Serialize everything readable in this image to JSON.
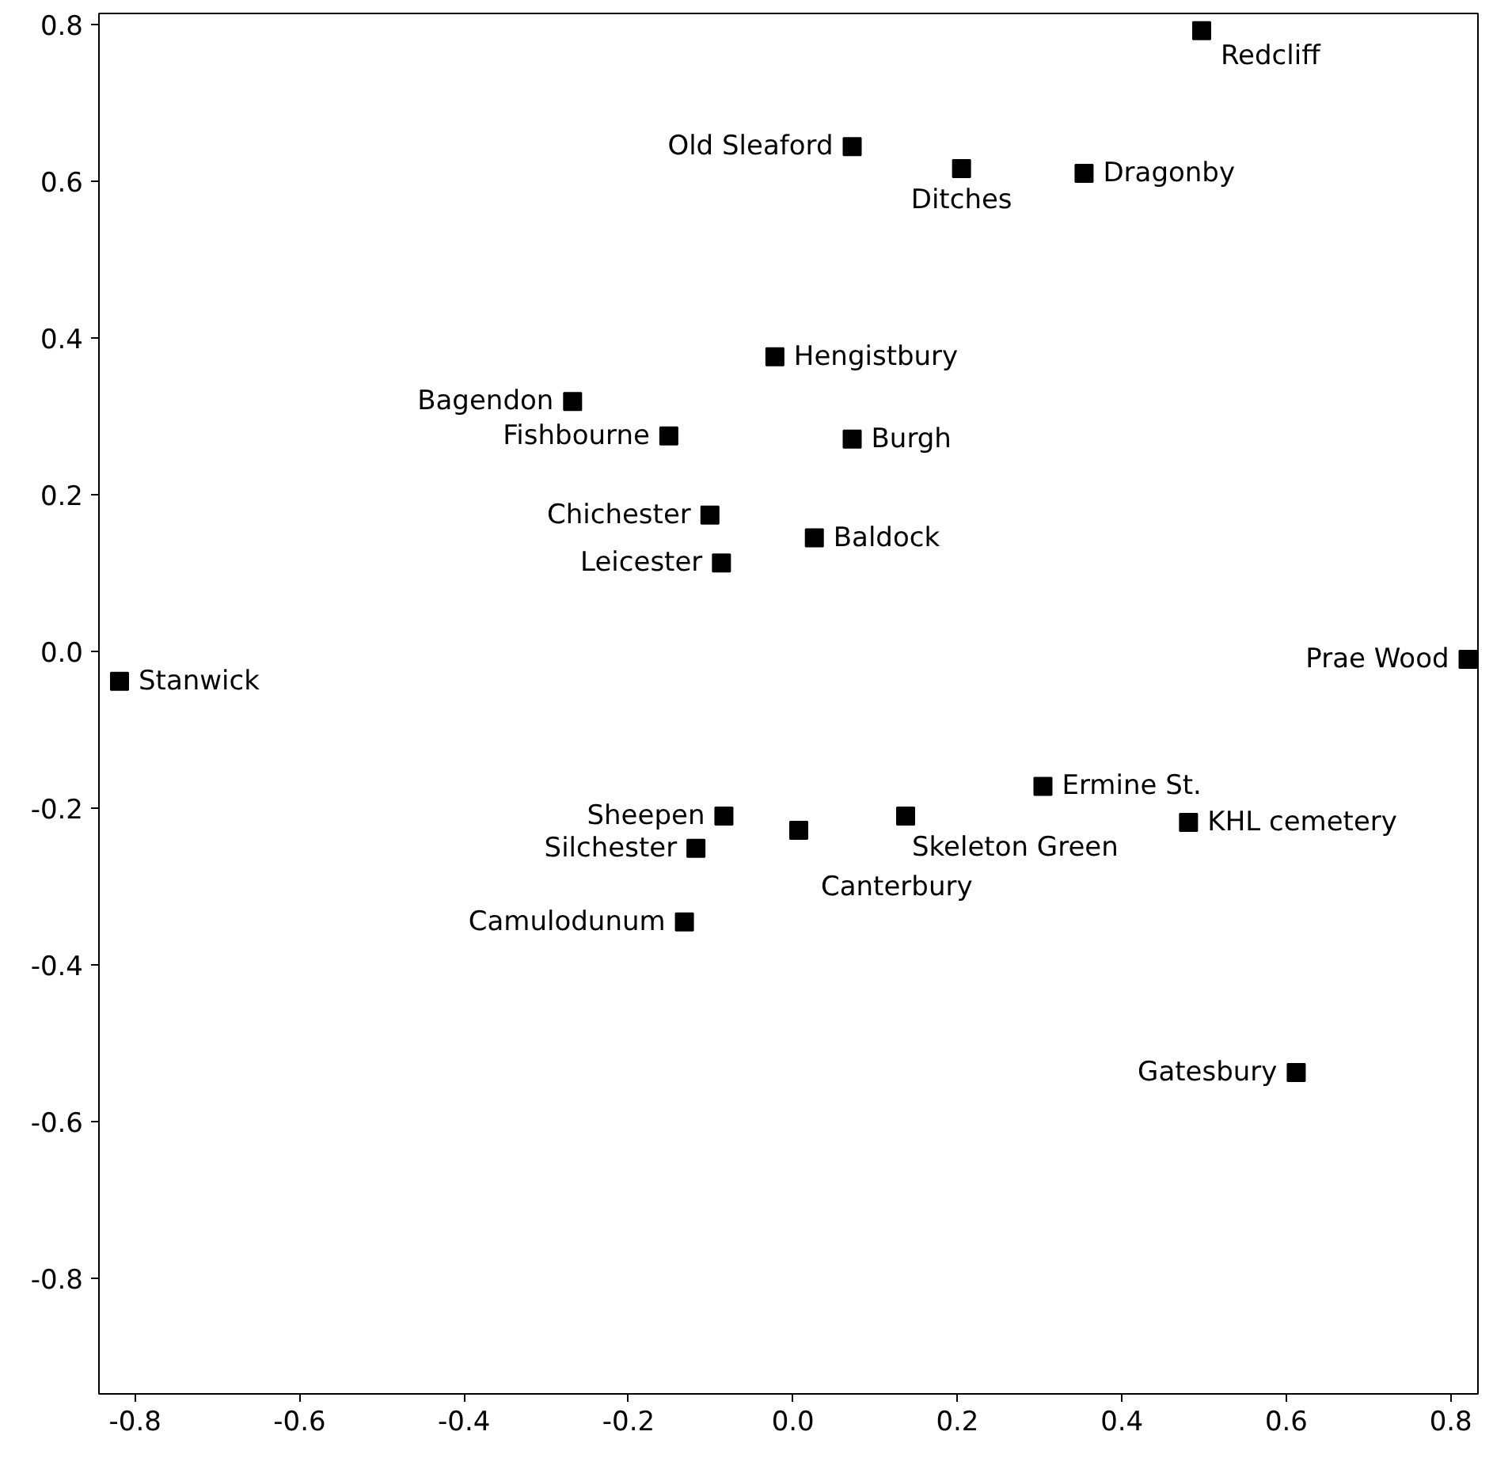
{
  "chart_data": {
    "type": "scatter",
    "marker": "square",
    "grid": false,
    "x": [
      0.497,
      0.072,
      0.205,
      0.354,
      -0.022,
      -0.268,
      -0.151,
      0.072,
      -0.101,
      0.026,
      -0.087,
      0.821,
      -0.819,
      0.304,
      -0.084,
      0.137,
      0.481,
      0.007,
      -0.118,
      -0.132,
      0.612
    ],
    "series": [
      {
        "color": "#000000",
        "values": [
          0.792,
          0.644,
          0.616,
          0.61,
          0.376,
          0.319,
          0.275,
          0.271,
          0.174,
          0.145,
          0.113,
          -0.01,
          -0.038,
          -0.172,
          -0.21,
          -0.21,
          -0.218,
          -0.228,
          -0.251,
          -0.345,
          -0.537
        ]
      }
    ],
    "annotations": [
      {
        "text": "Redcliff",
        "x": 0.497,
        "y": 0.792
      },
      {
        "text": "Old Sleaford",
        "x": 0.072,
        "y": 0.644
      },
      {
        "text": "Ditches",
        "x": 0.205,
        "y": 0.616
      },
      {
        "text": "Dragonby",
        "x": 0.354,
        "y": 0.61
      },
      {
        "text": "Hengistbury",
        "x": -0.022,
        "y": 0.376
      },
      {
        "text": "Bagendon",
        "x": -0.268,
        "y": 0.319
      },
      {
        "text": "Fishbourne",
        "x": -0.151,
        "y": 0.275
      },
      {
        "text": "Burgh",
        "x": 0.072,
        "y": 0.271
      },
      {
        "text": "Chichester",
        "x": -0.101,
        "y": 0.174
      },
      {
        "text": "Baldock",
        "x": 0.026,
        "y": 0.145
      },
      {
        "text": "Leicester",
        "x": -0.087,
        "y": 0.113
      },
      {
        "text": "Prae Wood",
        "x": 0.821,
        "y": -0.01
      },
      {
        "text": "Stanwick",
        "x": -0.819,
        "y": -0.038
      },
      {
        "text": "Ermine St.",
        "x": 0.304,
        "y": -0.172
      },
      {
        "text": "Sheepen",
        "x": -0.084,
        "y": -0.21
      },
      {
        "text": "Skeleton Green",
        "x": 0.137,
        "y": -0.21
      },
      {
        "text": "KHL cemetery",
        "x": 0.481,
        "y": -0.218
      },
      {
        "text": "Canterbury",
        "x": 0.007,
        "y": -0.228
      },
      {
        "text": "Silchester",
        "x": -0.118,
        "y": -0.251
      },
      {
        "text": "Camulodunum",
        "x": -0.132,
        "y": -0.345
      },
      {
        "text": "Gatesbury",
        "x": 0.612,
        "y": -0.537
      }
    ],
    "xlim": [
      -0.844,
      0.833
    ],
    "ylim": [
      -0.947,
      0.814
    ],
    "xticks": [
      {
        "value": -0.8,
        "label": "-0.8"
      },
      {
        "value": -0.6,
        "label": "-0.6"
      },
      {
        "value": -0.4,
        "label": "-0.4"
      },
      {
        "value": -0.2,
        "label": "-0.2"
      },
      {
        "value": 0,
        "label": "0.0"
      },
      {
        "value": 0.2,
        "label": "0.2"
      },
      {
        "value": 0.4,
        "label": "0.4"
      },
      {
        "value": 0.6,
        "label": "0.6"
      },
      {
        "value": 0.8,
        "label": "0.8"
      }
    ],
    "yticks": [
      {
        "value": -0.8,
        "label": "-0.8"
      },
      {
        "value": -0.6,
        "label": "-0.6"
      },
      {
        "value": -0.4,
        "label": "-0.4"
      },
      {
        "value": -0.2,
        "label": "-0.2"
      },
      {
        "value": 0,
        "label": "0.0"
      },
      {
        "value": 0.2,
        "label": "0.2"
      },
      {
        "value": 0.4,
        "label": "0.4"
      },
      {
        "value": 0.6,
        "label": "0.6"
      },
      {
        "value": 0.8,
        "label": "0.8"
      }
    ]
  }
}
